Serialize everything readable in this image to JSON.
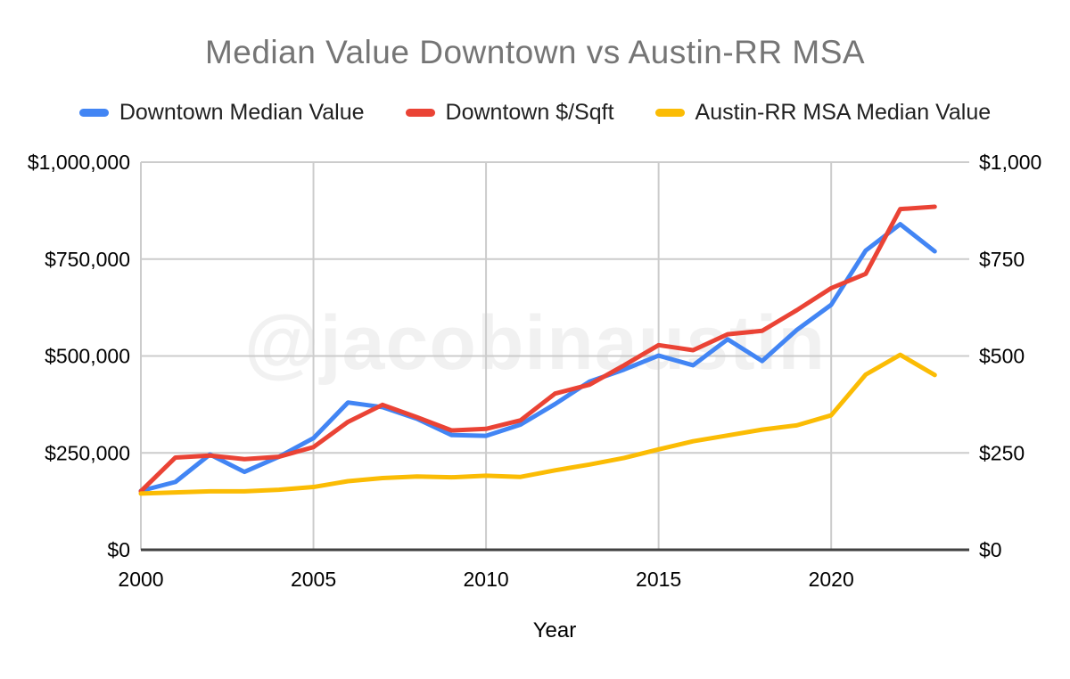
{
  "chart_data": {
    "type": "line",
    "title": "Median Value Downtown vs Austin-RR MSA",
    "title_color": "#757575",
    "watermark": "@jacobinaustin",
    "xlabel": "Year",
    "background": "#ffffff",
    "grid_color": "#cccccc",
    "baseline_color": "#424242",
    "axis_text_color": "#000000",
    "legend_text_color": "#212121",
    "legend_position": "top",
    "x": [
      2000,
      2001,
      2002,
      2003,
      2004,
      2005,
      2006,
      2007,
      2008,
      2009,
      2010,
      2011,
      2012,
      2013,
      2014,
      2015,
      2016,
      2017,
      2018,
      2019,
      2020,
      2021,
      2022,
      2023
    ],
    "x_axis": {
      "min": 2000,
      "max": 2024,
      "tick_values": [
        2000,
        2005,
        2010,
        2015,
        2020
      ],
      "tick_labels": [
        "2000",
        "2005",
        "2010",
        "2015",
        "2020"
      ]
    },
    "left_axis": {
      "min": 0,
      "max": 1000000,
      "tick_values": [
        0,
        250000,
        500000,
        750000,
        1000000
      ],
      "tick_labels": [
        "$0",
        "$250,000",
        "$500,000",
        "$750,000",
        "$1,000,000"
      ]
    },
    "right_axis": {
      "min": 0,
      "max": 1000,
      "tick_values": [
        0,
        250,
        500,
        750,
        1000
      ],
      "tick_labels": [
        "$0",
        "$250",
        "$500",
        "$750",
        "$1,000"
      ]
    },
    "series": [
      {
        "name": "Downtown Median Value",
        "color": "#4285F4",
        "axis": "left",
        "values": [
          152000,
          175000,
          246000,
          201000,
          240000,
          288000,
          380000,
          368000,
          338000,
          296000,
          294000,
          323000,
          376000,
          434000,
          465000,
          501000,
          476000,
          543000,
          487000,
          567000,
          632000,
          772000,
          840000,
          770000
        ]
      },
      {
        "name": "Downtown $/Sqft",
        "color": "#EA4335",
        "axis": "right",
        "values": [
          151,
          238,
          243,
          234,
          240,
          265,
          330,
          374,
          342,
          308,
          312,
          334,
          403,
          426,
          476,
          528,
          515,
          556,
          565,
          618,
          675,
          712,
          879,
          885
        ]
      },
      {
        "name": "Austin-RR MSA Median Value",
        "color": "#FBBC04",
        "axis": "left",
        "values": [
          145000,
          148000,
          151000,
          151000,
          155000,
          162000,
          177000,
          185000,
          189000,
          187000,
          191000,
          188000,
          205000,
          220000,
          237000,
          259000,
          280000,
          295000,
          310000,
          321000,
          347000,
          452000,
          503000,
          451000
        ]
      }
    ]
  }
}
